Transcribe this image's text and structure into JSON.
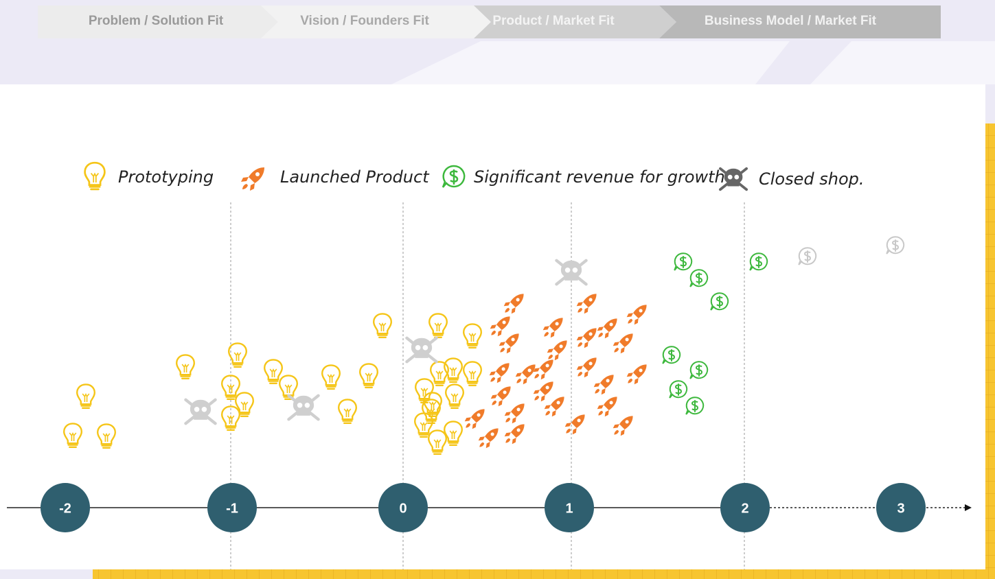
{
  "phases": [
    "Problem / Solution Fit",
    "Vision / Founders Fit",
    "Product / Market Fit",
    "Business Model / Market Fit"
  ],
  "legend": [
    "Prototyping",
    "Launched Product",
    "Significant revenue for growth",
    "Closed shop."
  ],
  "timeline": [
    "-2",
    "-1",
    "0",
    "1",
    "2",
    "3"
  ]
}
